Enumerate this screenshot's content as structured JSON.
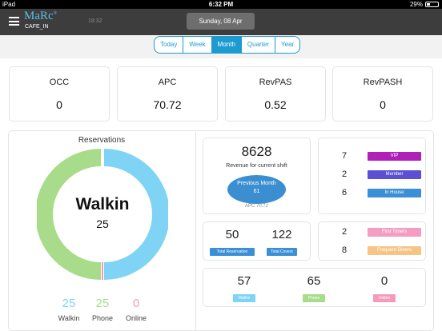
{
  "statusbar": {
    "device": "iPad",
    "time": "6:32 PM",
    "battery": "29%",
    "battery_level": 0.29
  },
  "header": {
    "logo": "MaRc",
    "logo_mark": "®",
    "subtitle": "CAFE_IN",
    "time": "18:32",
    "date": "Sunday, 08 Apr"
  },
  "tabs": [
    {
      "label": "Today",
      "active": false
    },
    {
      "label": "Week",
      "active": false
    },
    {
      "label": "Month",
      "active": true
    },
    {
      "label": "Quarter",
      "active": false
    },
    {
      "label": "Year",
      "active": false
    }
  ],
  "kpis": [
    {
      "label": "OCC",
      "value": "0"
    },
    {
      "label": "APC",
      "value": "70.72"
    },
    {
      "label": "RevPAS",
      "value": "0.52"
    },
    {
      "label": "RevPASH",
      "value": "0"
    }
  ],
  "reservations": {
    "title": "Reservations",
    "center_label": "Walkin",
    "center_value": "25",
    "legend": [
      {
        "label": "Walkin",
        "value": "25",
        "color": "#7fd3f5"
      },
      {
        "label": "Phone",
        "value": "25",
        "color": "#a8dc8a"
      },
      {
        "label": "Online",
        "value": "0",
        "color": "#f39bbd"
      }
    ]
  },
  "revenue": {
    "value": "8628",
    "label": "Revenue for current shift",
    "previous_label": "Previous Month",
    "previous_value": "61",
    "apc": "APC 70.72"
  },
  "guest_segments": [
    {
      "count": "7",
      "label": "VIP",
      "color": "#b020b8"
    },
    {
      "count": "2",
      "label": "Member",
      "color": "#5b4fd6"
    },
    {
      "count": "6",
      "label": "In House",
      "color": "#3b8fd6"
    }
  ],
  "totals": {
    "reservations": {
      "value": "50",
      "label": "Total Reservation"
    },
    "covers": {
      "value": "122",
      "label": "Total Covers"
    }
  },
  "diner_types": [
    {
      "count": "2",
      "label": "First Timers",
      "color": "#f49cc4"
    },
    {
      "count": "8",
      "label": "Frequent Diners",
      "color": "#f6c586"
    }
  ],
  "channel_stats": [
    {
      "value": "57",
      "label": "Walkin",
      "color": "#7fd3f5"
    },
    {
      "value": "65",
      "label": "Phone",
      "color": "#a8dc8a"
    },
    {
      "value": "0",
      "label": "Online",
      "color": "#f39bbd"
    }
  ]
}
